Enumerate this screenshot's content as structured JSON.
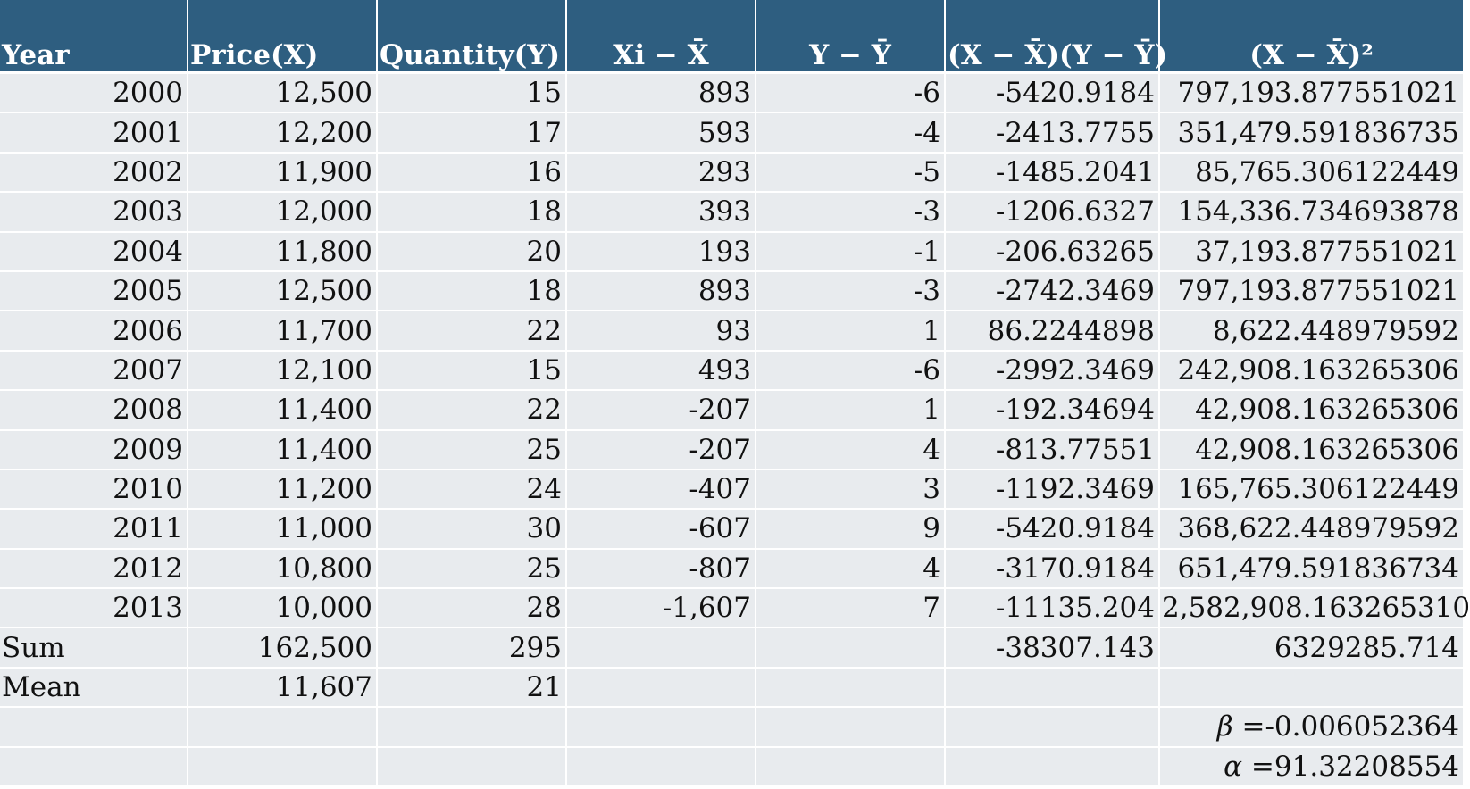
{
  "headers": {
    "year": "Year",
    "price": "Price(X)",
    "quantity": "Quantity(Y)",
    "xdev": "Xi − X̄",
    "ydev": "Y − Ȳ",
    "product": "(X − X̄)(Y − Ȳ)",
    "xsq": "(X − X̄)²"
  },
  "rows": [
    [
      "2000",
      "12,500",
      "15",
      "893",
      "-6",
      "-5420.9184",
      "797,193.877551021"
    ],
    [
      "2001",
      "12,200",
      "17",
      "593",
      "-4",
      "-2413.7755",
      "351,479.591836735"
    ],
    [
      "2002",
      "11,900",
      "16",
      "293",
      "-5",
      "-1485.2041",
      "85,765.306122449"
    ],
    [
      "2003",
      "12,000",
      "18",
      "393",
      "-3",
      "-1206.6327",
      "154,336.734693878"
    ],
    [
      "2004",
      "11,800",
      "20",
      "193",
      "-1",
      "-206.63265",
      "37,193.877551021"
    ],
    [
      "2005",
      "12,500",
      "18",
      "893",
      "-3",
      "-2742.3469",
      "797,193.877551021"
    ],
    [
      "2006",
      "11,700",
      "22",
      "93",
      "1",
      "86.2244898",
      "8,622.448979592"
    ],
    [
      "2007",
      "12,100",
      "15",
      "493",
      "-6",
      "-2992.3469",
      "242,908.163265306"
    ],
    [
      "2008",
      "11,400",
      "22",
      "-207",
      "1",
      "-192.34694",
      "42,908.163265306"
    ],
    [
      "2009",
      "11,400",
      "25",
      "-207",
      "4",
      "-813.77551",
      "42,908.163265306"
    ],
    [
      "2010",
      "11,200",
      "24",
      "-407",
      "3",
      "-1192.3469",
      "165,765.306122449"
    ],
    [
      "2011",
      "11,000",
      "30",
      "-607",
      "9",
      "-5420.9184",
      "368,622.448979592"
    ],
    [
      "2012",
      "10,800",
      "25",
      "-807",
      "4",
      "-3170.9184",
      "651,479.591836734"
    ],
    [
      "2013",
      "10,000",
      "28",
      "-1,607",
      "7",
      "-11135.204",
      "2,582,908.163265310"
    ]
  ],
  "sum": {
    "label": "Sum",
    "price": "162,500",
    "quantity": "295",
    "product": "-38307.143",
    "xsq": "6329285.714"
  },
  "mean": {
    "label": "Mean",
    "price": "11,607",
    "quantity": "21"
  },
  "coefficients": {
    "beta_symbol": "β",
    "beta_value": " =-0.006052364",
    "alpha_symbol": "α",
    "alpha_value": " =91.32208554"
  },
  "colors": {
    "header_bg": "#2e5e80",
    "header_text": "#ffffff",
    "cell_bg": "#e8ebee",
    "grid": "#ffffff"
  }
}
